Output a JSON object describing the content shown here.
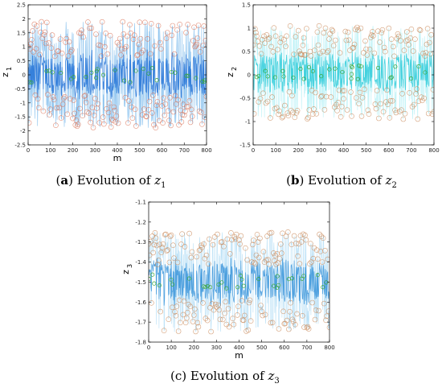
{
  "chart_data": [
    {
      "panel": "a",
      "type": "line",
      "title": "Evolution of z1",
      "caption": {
        "letter": "a",
        "text": "Evolution of",
        "var": "z",
        "sub": "1"
      },
      "xlabel": "m",
      "ylabel": {
        "base": "z",
        "sub": "1"
      },
      "xlim": [
        0,
        800
      ],
      "ylim": [
        -2.5,
        2.5
      ],
      "xticks": [
        "0",
        "100",
        "200",
        "300",
        "400",
        "500",
        "600",
        "700",
        "800"
      ],
      "yticks": [
        "-2.5",
        "-2",
        "-1.5",
        "-1",
        "-0.5",
        "0",
        "0.5",
        "1",
        "1.5",
        "2",
        "2.5"
      ],
      "series": [
        {
          "center": 0.0,
          "amplitude": 1.9,
          "line_color": "#1f6fd6",
          "fill_color": "#2a8fe0",
          "marker_color": "#d9745a"
        }
      ],
      "grid": false
    },
    {
      "panel": "b",
      "type": "line",
      "title": "Evolution of z2",
      "caption": {
        "letter": "b",
        "text": "Evolution of",
        "var": "z",
        "sub": "2"
      },
      "xlabel": "",
      "ylabel": {
        "base": "z",
        "sub": "2"
      },
      "xlim": [
        0,
        800
      ],
      "ylim": [
        -1.5,
        1.5
      ],
      "xticks": [
        "0",
        "100",
        "200",
        "300",
        "400",
        "500",
        "600",
        "700",
        "800"
      ],
      "yticks": [
        "-1.5",
        "-1",
        "-0.5",
        "0",
        "0.5",
        "1",
        "1.5"
      ],
      "series": [
        {
          "center": 0.05,
          "amplitude": 1.0,
          "line_color": "#25c9d8",
          "fill_color": "#7fe6ee",
          "marker_color": "#c9895a"
        }
      ],
      "grid": false
    },
    {
      "panel": "c",
      "type": "line",
      "title": "Evolution of z3",
      "caption": {
        "letter": "c",
        "text": "Evolution of",
        "var": "z",
        "sub": "3"
      },
      "xlabel": "m",
      "ylabel": {
        "base": "z",
        "sub": "3"
      },
      "xlim": [
        0,
        800
      ],
      "ylim": [
        -1.8,
        -1.1
      ],
      "xticks": [
        "0",
        "100",
        "200",
        "300",
        "400",
        "500",
        "600",
        "700",
        "800"
      ],
      "yticks": [
        "-1.8",
        "-1.7",
        "-1.6",
        "-1.5",
        "-1.4",
        "-1.3",
        "-1.2",
        "-1.1"
      ],
      "series": [
        {
          "center": -1.5,
          "amplitude": 0.25,
          "line_color": "#2f8fd8",
          "fill_color": "#7fc6ee",
          "marker_color": "#c9895a"
        }
      ],
      "grid": false
    }
  ]
}
